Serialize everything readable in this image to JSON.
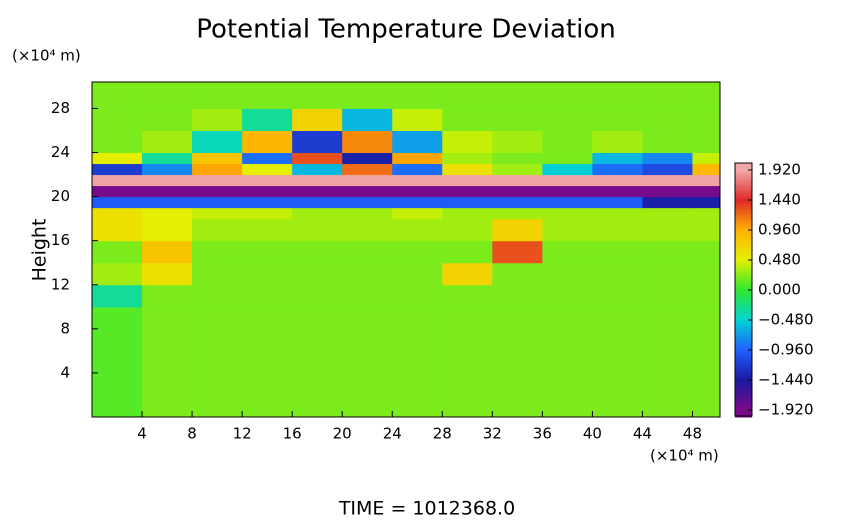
{
  "chart_data": {
    "type": "heatmap",
    "title": "Potential Temperature Deviation",
    "ylabel": "Height",
    "x_unit": "(×10⁴ m)",
    "y_unit": "(×10⁴ m)",
    "footer": "TIME = 1012368.0",
    "xlim": [
      0,
      50.2
    ],
    "ylim": [
      0,
      30.4
    ],
    "xticks": [
      4,
      8,
      12,
      16,
      20,
      24,
      28,
      32,
      36,
      40,
      44,
      48
    ],
    "yticks": [
      4,
      8,
      12,
      16,
      20,
      24,
      28
    ],
    "x_bins": [
      0,
      4,
      8,
      12,
      16,
      20,
      24,
      28,
      32,
      36,
      40,
      44,
      48,
      50.2
    ],
    "y_bins": [
      0,
      10,
      12,
      14,
      16,
      18,
      19,
      20,
      21,
      22,
      23,
      24,
      26,
      28,
      30.4
    ],
    "values": [
      [
        0.1,
        0.2,
        0.2,
        0.2,
        0.2,
        0.2,
        0.2,
        0.2,
        0.2,
        0.2,
        0.2,
        0.2,
        0.2
      ],
      [
        -0.3,
        0.2,
        0.2,
        0.2,
        0.2,
        0.2,
        0.2,
        0.2,
        0.2,
        0.2,
        0.2,
        0.2,
        0.2
      ],
      [
        0.3,
        0.6,
        0.2,
        0.2,
        0.2,
        0.2,
        0.2,
        0.7,
        0.2,
        0.2,
        0.2,
        0.2,
        0.2
      ],
      [
        0.2,
        0.8,
        0.2,
        0.2,
        0.2,
        0.2,
        0.2,
        0.2,
        1.3,
        0.2,
        0.2,
        0.2,
        0.2
      ],
      [
        0.6,
        0.5,
        0.3,
        0.3,
        0.3,
        0.3,
        0.3,
        0.3,
        0.7,
        0.3,
        0.3,
        0.3,
        0.3
      ],
      [
        0.6,
        0.5,
        0.4,
        0.4,
        0.3,
        0.3,
        0.4,
        0.3,
        0.3,
        0.3,
        0.3,
        0.3,
        0.3
      ],
      [
        -1.0,
        -1.0,
        -1.0,
        -1.0,
        -1.0,
        -1.0,
        -1.0,
        -1.0,
        -1.0,
        -1.0,
        -1.0,
        -1.4,
        -1.4
      ],
      [
        -1.9,
        -1.9,
        -1.9,
        -1.9,
        -1.9,
        -1.9,
        -1.9,
        -1.9,
        -1.9,
        -1.9,
        -1.9,
        -1.9,
        -1.9
      ],
      [
        1.9,
        1.9,
        1.9,
        1.9,
        1.9,
        1.9,
        1.9,
        1.9,
        1.9,
        1.9,
        1.9,
        1.9,
        1.9
      ],
      [
        -1.2,
        -0.8,
        1.0,
        0.5,
        -0.6,
        1.2,
        -0.9,
        0.6,
        0.3,
        -0.5,
        -0.9,
        -1.1,
        0.9
      ],
      [
        0.5,
        -0.3,
        0.8,
        -0.9,
        1.3,
        -1.4,
        1.0,
        0.3,
        0.2,
        0.2,
        -0.6,
        -0.8,
        0.4
      ],
      [
        0.2,
        0.3,
        -0.4,
        0.9,
        -1.2,
        1.1,
        -0.7,
        0.4,
        0.3,
        0.2,
        0.3,
        0.2,
        0.2
      ],
      [
        0.2,
        0.2,
        0.3,
        -0.3,
        0.7,
        -0.6,
        0.4,
        0.2,
        0.2,
        0.2,
        0.2,
        0.2,
        0.2
      ],
      [
        0.2,
        0.2,
        0.2,
        0.2,
        0.2,
        0.2,
        0.2,
        0.2,
        0.2,
        0.2,
        0.2,
        0.2,
        0.2
      ]
    ],
    "colorbar_ticks": [
      {
        "value": 1.92,
        "label": "1.920"
      },
      {
        "value": 1.44,
        "label": "1.440"
      },
      {
        "value": 0.96,
        "label": "0.960"
      },
      {
        "value": 0.48,
        "label": "0.480"
      },
      {
        "value": 0,
        "label": "0.000"
      },
      {
        "value": -0.48,
        "label": "−0.480"
      },
      {
        "value": -0.96,
        "label": "−0.960"
      },
      {
        "value": -1.44,
        "label": "−1.440"
      },
      {
        "value": -1.92,
        "label": "−1.920"
      }
    ],
    "colormap": [
      "#f2a8a8",
      "#e02828",
      "#ffb000",
      "#e4f000",
      "#30e830",
      "#00d4d4",
      "#2060ff",
      "#1a1aa0",
      "#7a0a8a"
    ]
  }
}
